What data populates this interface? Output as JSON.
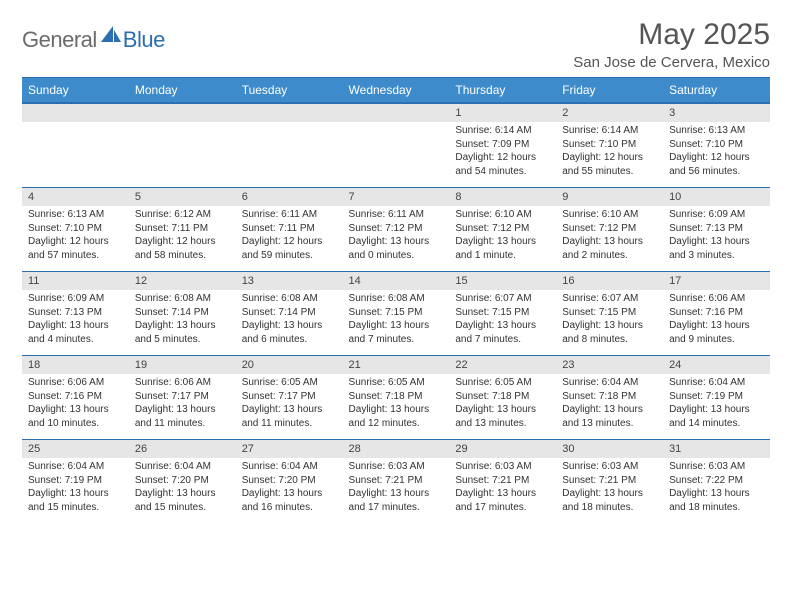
{
  "logo": {
    "text1": "General",
    "text2": "Blue"
  },
  "title": "May 2025",
  "location": "San Jose de Cervera, Mexico",
  "colors": {
    "header_bg": "#3d8bcb",
    "header_border": "#2b6fb0",
    "daynum_bg": "#e6e6e6",
    "text": "#333333",
    "logo_gray": "#6b6b6b",
    "logo_blue": "#2b6fb0"
  },
  "weekdays": [
    "Sunday",
    "Monday",
    "Tuesday",
    "Wednesday",
    "Thursday",
    "Friday",
    "Saturday"
  ],
  "weeks": [
    [
      {},
      {},
      {},
      {},
      {
        "day": "1",
        "sunrise": "Sunrise: 6:14 AM",
        "sunset": "Sunset: 7:09 PM",
        "daylight": "Daylight: 12 hours and 54 minutes."
      },
      {
        "day": "2",
        "sunrise": "Sunrise: 6:14 AM",
        "sunset": "Sunset: 7:10 PM",
        "daylight": "Daylight: 12 hours and 55 minutes."
      },
      {
        "day": "3",
        "sunrise": "Sunrise: 6:13 AM",
        "sunset": "Sunset: 7:10 PM",
        "daylight": "Daylight: 12 hours and 56 minutes."
      }
    ],
    [
      {
        "day": "4",
        "sunrise": "Sunrise: 6:13 AM",
        "sunset": "Sunset: 7:10 PM",
        "daylight": "Daylight: 12 hours and 57 minutes."
      },
      {
        "day": "5",
        "sunrise": "Sunrise: 6:12 AM",
        "sunset": "Sunset: 7:11 PM",
        "daylight": "Daylight: 12 hours and 58 minutes."
      },
      {
        "day": "6",
        "sunrise": "Sunrise: 6:11 AM",
        "sunset": "Sunset: 7:11 PM",
        "daylight": "Daylight: 12 hours and 59 minutes."
      },
      {
        "day": "7",
        "sunrise": "Sunrise: 6:11 AM",
        "sunset": "Sunset: 7:12 PM",
        "daylight": "Daylight: 13 hours and 0 minutes."
      },
      {
        "day": "8",
        "sunrise": "Sunrise: 6:10 AM",
        "sunset": "Sunset: 7:12 PM",
        "daylight": "Daylight: 13 hours and 1 minute."
      },
      {
        "day": "9",
        "sunrise": "Sunrise: 6:10 AM",
        "sunset": "Sunset: 7:12 PM",
        "daylight": "Daylight: 13 hours and 2 minutes."
      },
      {
        "day": "10",
        "sunrise": "Sunrise: 6:09 AM",
        "sunset": "Sunset: 7:13 PM",
        "daylight": "Daylight: 13 hours and 3 minutes."
      }
    ],
    [
      {
        "day": "11",
        "sunrise": "Sunrise: 6:09 AM",
        "sunset": "Sunset: 7:13 PM",
        "daylight": "Daylight: 13 hours and 4 minutes."
      },
      {
        "day": "12",
        "sunrise": "Sunrise: 6:08 AM",
        "sunset": "Sunset: 7:14 PM",
        "daylight": "Daylight: 13 hours and 5 minutes."
      },
      {
        "day": "13",
        "sunrise": "Sunrise: 6:08 AM",
        "sunset": "Sunset: 7:14 PM",
        "daylight": "Daylight: 13 hours and 6 minutes."
      },
      {
        "day": "14",
        "sunrise": "Sunrise: 6:08 AM",
        "sunset": "Sunset: 7:15 PM",
        "daylight": "Daylight: 13 hours and 7 minutes."
      },
      {
        "day": "15",
        "sunrise": "Sunrise: 6:07 AM",
        "sunset": "Sunset: 7:15 PM",
        "daylight": "Daylight: 13 hours and 7 minutes."
      },
      {
        "day": "16",
        "sunrise": "Sunrise: 6:07 AM",
        "sunset": "Sunset: 7:15 PM",
        "daylight": "Daylight: 13 hours and 8 minutes."
      },
      {
        "day": "17",
        "sunrise": "Sunrise: 6:06 AM",
        "sunset": "Sunset: 7:16 PM",
        "daylight": "Daylight: 13 hours and 9 minutes."
      }
    ],
    [
      {
        "day": "18",
        "sunrise": "Sunrise: 6:06 AM",
        "sunset": "Sunset: 7:16 PM",
        "daylight": "Daylight: 13 hours and 10 minutes."
      },
      {
        "day": "19",
        "sunrise": "Sunrise: 6:06 AM",
        "sunset": "Sunset: 7:17 PM",
        "daylight": "Daylight: 13 hours and 11 minutes."
      },
      {
        "day": "20",
        "sunrise": "Sunrise: 6:05 AM",
        "sunset": "Sunset: 7:17 PM",
        "daylight": "Daylight: 13 hours and 11 minutes."
      },
      {
        "day": "21",
        "sunrise": "Sunrise: 6:05 AM",
        "sunset": "Sunset: 7:18 PM",
        "daylight": "Daylight: 13 hours and 12 minutes."
      },
      {
        "day": "22",
        "sunrise": "Sunrise: 6:05 AM",
        "sunset": "Sunset: 7:18 PM",
        "daylight": "Daylight: 13 hours and 13 minutes."
      },
      {
        "day": "23",
        "sunrise": "Sunrise: 6:04 AM",
        "sunset": "Sunset: 7:18 PM",
        "daylight": "Daylight: 13 hours and 13 minutes."
      },
      {
        "day": "24",
        "sunrise": "Sunrise: 6:04 AM",
        "sunset": "Sunset: 7:19 PM",
        "daylight": "Daylight: 13 hours and 14 minutes."
      }
    ],
    [
      {
        "day": "25",
        "sunrise": "Sunrise: 6:04 AM",
        "sunset": "Sunset: 7:19 PM",
        "daylight": "Daylight: 13 hours and 15 minutes."
      },
      {
        "day": "26",
        "sunrise": "Sunrise: 6:04 AM",
        "sunset": "Sunset: 7:20 PM",
        "daylight": "Daylight: 13 hours and 15 minutes."
      },
      {
        "day": "27",
        "sunrise": "Sunrise: 6:04 AM",
        "sunset": "Sunset: 7:20 PM",
        "daylight": "Daylight: 13 hours and 16 minutes."
      },
      {
        "day": "28",
        "sunrise": "Sunrise: 6:03 AM",
        "sunset": "Sunset: 7:21 PM",
        "daylight": "Daylight: 13 hours and 17 minutes."
      },
      {
        "day": "29",
        "sunrise": "Sunrise: 6:03 AM",
        "sunset": "Sunset: 7:21 PM",
        "daylight": "Daylight: 13 hours and 17 minutes."
      },
      {
        "day": "30",
        "sunrise": "Sunrise: 6:03 AM",
        "sunset": "Sunset: 7:21 PM",
        "daylight": "Daylight: 13 hours and 18 minutes."
      },
      {
        "day": "31",
        "sunrise": "Sunrise: 6:03 AM",
        "sunset": "Sunset: 7:22 PM",
        "daylight": "Daylight: 13 hours and 18 minutes."
      }
    ]
  ]
}
